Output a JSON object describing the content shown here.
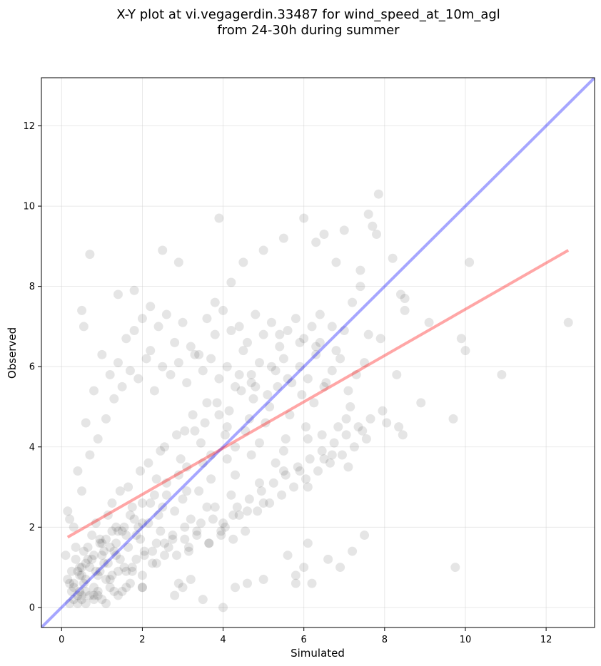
{
  "chart_data": {
    "type": "scatter",
    "title_line1": "X-Y plot at vi.vegagerdin.33487 for wind_speed_at_10m_agl",
    "title_line2": "from 24-30h during summer",
    "xlabel": "Simulated",
    "ylabel": "Observed",
    "xlim": [
      -0.5,
      13.2
    ],
    "ylim": [
      -0.5,
      13.2
    ],
    "xticks": [
      0,
      2,
      4,
      6,
      8,
      10,
      12
    ],
    "yticks": [
      0,
      2,
      4,
      6,
      8,
      10,
      12
    ],
    "grid": true,
    "marker_color": "#000000",
    "marker_alpha": 0.1,
    "identity_line": {
      "color": "#0000ff",
      "alpha": 0.35,
      "x": [
        -0.5,
        13.2
      ],
      "y": [
        -0.5,
        13.2
      ]
    },
    "fit_line": {
      "color": "#ff0000",
      "alpha": 0.35,
      "x": [
        0.15,
        12.55
      ],
      "y": [
        1.75,
        8.9
      ]
    },
    "points": {
      "x": [
        0.7,
        2.5,
        0.5,
        0.55,
        1.4,
        1.8,
        2.2,
        2.9,
        3.8,
        3.9,
        4.2,
        4.5,
        5.0,
        5.5,
        6.0,
        6.3,
        6.5,
        6.8,
        7.0,
        7.4,
        7.6,
        7.7,
        7.8,
        7.85,
        8.2,
        8.4,
        8.5,
        10.1,
        12.55,
        10.9,
        9.7,
        9.75,
        9.9,
        10.0,
        8.9,
        9.1,
        7.9,
        8.3,
        8.35,
        8.45,
        8.5,
        2.9,
        3.2,
        3.5,
        2.0,
        1.2,
        1.4,
        1.6,
        0.9,
        0.8,
        0.6,
        0.4,
        0.3,
        0.2,
        0.1,
        0.15,
        0.45,
        0.5,
        0.65,
        0.95,
        1.05,
        1.25,
        1.35,
        1.55,
        1.75,
        1.85,
        2.05,
        2.25,
        2.35,
        2.55,
        2.65,
        2.75,
        3.05,
        3.15,
        3.35,
        3.45,
        3.65,
        3.75,
        3.95,
        4.05,
        4.25,
        4.35,
        4.55,
        4.65,
        4.85,
        4.95,
        5.15,
        5.25,
        5.45,
        5.55,
        5.75,
        5.85,
        6.05,
        6.15,
        6.35,
        6.45,
        6.65,
        6.75,
        6.95,
        7.05,
        7.25,
        7.35,
        7.55,
        7.65,
        7.95,
        8.05,
        5.6,
        5.8,
        6.1,
        6.6,
        6.9,
        7.2,
        7.5,
        0.2,
        0.4,
        0.6,
        0.8,
        1.0,
        1.2,
        1.4,
        1.6,
        1.8,
        2.0,
        2.2,
        2.4,
        2.6,
        2.8,
        3.0,
        3.2,
        3.4,
        3.6,
        3.8,
        4.0,
        4.2,
        4.4,
        4.6,
        4.8,
        5.0,
        5.2,
        5.4,
        5.6,
        5.8,
        6.0,
        6.2,
        6.4,
        0.3,
        0.5,
        0.7,
        0.9,
        1.1,
        1.3,
        1.5,
        1.7,
        1.9,
        2.1,
        2.3,
        2.5,
        2.7,
        2.9,
        3.1,
        3.3,
        3.5,
        3.7,
        3.9,
        4.1,
        4.3,
        4.5,
        4.7,
        4.9,
        5.1,
        5.3,
        5.5,
        5.7,
        5.9,
        6.1,
        6.3,
        6.5,
        6.7,
        6.9,
        7.1,
        7.3,
        7.5,
        0.35,
        0.75,
        1.15,
        1.45,
        1.95,
        2.45,
        2.85,
        3.25,
        3.85,
        4.45,
        4.75,
        5.35,
        5.95,
        6.55,
        7.15,
        0.25,
        0.55,
        0.85,
        1.25,
        1.65,
        2.15,
        2.55,
        3.05,
        3.55,
        4.15,
        4.65,
        5.15,
        5.65,
        6.25,
        6.85,
        0.45,
        0.95,
        1.35,
        1.75,
        2.35,
        2.95,
        3.45,
        4.05,
        4.55,
        5.05,
        5.55,
        6.05,
        6.45,
        7.05,
        7.45,
        0.6,
        1.0,
        1.5,
        2.0,
        2.6,
        3.1,
        3.7,
        4.3,
        4.9,
        5.5,
        6.1,
        6.7,
        0.3,
        0.7,
        1.1,
        1.7,
        2.3,
        2.9,
        3.5,
        4.1,
        4.7,
        5.3,
        5.9,
        6.5,
        7.1,
        0.5,
        0.9,
        1.3,
        1.9,
        2.5,
        3.1,
        3.7,
        4.3,
        4.9,
        5.5,
        6.1,
        0.2,
        0.6,
        1.0,
        1.4,
        1.8,
        2.2,
        2.6,
        3.0,
        3.4,
        3.8,
        4.2,
        4.6,
        5.0,
        0.4,
        0.8,
        1.2,
        1.6,
        2.0,
        2.4,
        2.8,
        3.2,
        3.6,
        4.0,
        4.4,
        0.35,
        0.65,
        0.95,
        1.25,
        1.55,
        1.85,
        2.15,
        2.45,
        2.75,
        3.05,
        3.35,
        3.65,
        3.95,
        4.25,
        0.15,
        0.45,
        0.75,
        1.05,
        1.35,
        1.65,
        1.95,
        2.25,
        2.55,
        2.85,
        3.15,
        0.25,
        0.55,
        0.85,
        1.15,
        1.45,
        1.75,
        2.05,
        2.35,
        0.5,
        0.8,
        1.1,
        1.4,
        1.7,
        2.0,
        0.3,
        0.6,
        0.9,
        1.2,
        1.5,
        0.4,
        0.7,
        1.0,
        1.3,
        0.5,
        0.8,
        1.1,
        4.1,
        3.9,
        4.7,
        5.2,
        5.9,
        6.3,
        6.7,
        7.0,
        3.6,
        3.3,
        4.4,
        4.8,
        5.4,
        5.6,
        6.4,
        6.8,
        7.2,
        7.6,
        7.4,
        2.0,
        1.6,
        2.8,
        3.0,
        4.6,
        5.8,
        6.0,
        6.2,
        4.0,
        5.0,
        4.3
      ],
      "y": [
        8.8,
        8.9,
        7.4,
        7.0,
        7.8,
        7.9,
        7.5,
        8.6,
        7.6,
        9.7,
        8.1,
        8.6,
        8.9,
        9.2,
        9.7,
        9.1,
        9.3,
        8.6,
        9.4,
        8.4,
        9.8,
        9.5,
        9.3,
        10.3,
        8.7,
        7.8,
        7.4,
        8.6,
        7.1,
        5.8,
        4.7,
        1.0,
        6.7,
        6.4,
        5.1,
        7.1,
        6.7,
        5.8,
        4.5,
        4.3,
        7.7,
        0.6,
        0.7,
        0.2,
        0.5,
        0.7,
        0.3,
        0.5,
        0.4,
        0.2,
        0.1,
        0.3,
        0.6,
        0.1,
        1.3,
        2.4,
        0.8,
        1.0,
        1.2,
        0.9,
        1.1,
        0.8,
        1.3,
        1.0,
        0.9,
        1.2,
        1.4,
        1.1,
        1.6,
        1.3,
        1.5,
        1.8,
        1.7,
        1.4,
        1.9,
        2.1,
        1.6,
        2.2,
        1.8,
        2.0,
        2.3,
        2.5,
        1.9,
        2.7,
        2.4,
        2.9,
        2.6,
        3.1,
        2.8,
        3.3,
        3.0,
        3.5,
        3.2,
        3.7,
        3.4,
        3.9,
        3.6,
        4.1,
        3.8,
        4.3,
        4.0,
        4.5,
        4.2,
        4.7,
        4.9,
        4.6,
        1.3,
        0.6,
        1.6,
        1.2,
        1.0,
        1.4,
        1.8,
        2.2,
        3.4,
        4.6,
        5.4,
        6.3,
        5.8,
        6.1,
        6.7,
        6.9,
        7.2,
        6.4,
        7.0,
        7.3,
        6.6,
        7.1,
        6.5,
        6.3,
        7.2,
        6.8,
        7.4,
        6.9,
        7.0,
        6.6,
        7.3,
        6.8,
        7.1,
        6.5,
        6.9,
        7.2,
        6.7,
        7.0,
        6.6,
        2.0,
        2.9,
        3.8,
        4.2,
        4.7,
        5.2,
        5.5,
        5.9,
        5.7,
        6.2,
        5.4,
        6.0,
        5.8,
        6.1,
        5.6,
        6.3,
        5.9,
        6.2,
        5.7,
        6.0,
        5.5,
        6.4,
        5.8,
        6.1,
        5.3,
        5.9,
        6.2,
        5.6,
        6.0,
        5.7,
        6.3,
        5.5,
        5.9,
        6.2,
        5.4,
        5.8,
        6.1,
        1.5,
        1.8,
        2.3,
        2.9,
        3.4,
        3.9,
        4.3,
        4.8,
        5.1,
        5.4,
        5.2,
        5.5,
        5.3,
        5.6,
        5.0,
        0.9,
        1.4,
        2.1,
        2.6,
        3.0,
        3.6,
        4.0,
        4.4,
        4.6,
        4.9,
        4.7,
        5.0,
        4.8,
        5.1,
        4.5,
        0.4,
        1.6,
        2.0,
        2.5,
        3.2,
        3.7,
        4.1,
        4.3,
        4.4,
        4.6,
        4.2,
        4.5,
        4.3,
        4.7,
        4.4,
        0.7,
        1.3,
        1.9,
        2.6,
        3.1,
        3.5,
        3.8,
        4.0,
        4.1,
        3.9,
        4.2,
        3.8,
        0.5,
        1.0,
        1.7,
        2.3,
        2.8,
        3.3,
        3.6,
        3.7,
        3.8,
        3.6,
        3.4,
        3.7,
        3.5,
        0.3,
        0.8,
        1.4,
        2.0,
        2.5,
        2.9,
        3.2,
        3.3,
        3.1,
        3.4,
        3.0,
        0.6,
        1.1,
        1.6,
        1.9,
        2.2,
        2.6,
        2.8,
        2.7,
        2.9,
        2.5,
        2.8,
        2.4,
        2.6,
        0.9,
        1.3,
        1.5,
        1.8,
        2.1,
        2.3,
        2.4,
        2.2,
        2.5,
        2.1,
        2.3,
        1.2,
        1.5,
        1.7,
        1.9,
        2.0,
        1.8,
        2.1,
        1.9,
        1.7,
        2.0,
        1.8,
        1.6,
        1.9,
        1.7,
        0.7,
        1.0,
        1.2,
        1.4,
        1.6,
        1.5,
        1.7,
        1.4,
        1.6,
        1.3,
        1.5,
        0.4,
        0.6,
        0.9,
        1.1,
        1.2,
        1.0,
        1.3,
        1.1,
        0.8,
        0.5,
        0.7,
        0.9,
        0.6,
        0.8,
        0.2,
        0.4,
        0.3,
        0.5,
        0.4,
        0.1,
        0.3,
        0.2,
        0.4,
        0.2,
        0.3,
        0.1,
        4.5,
        4.8,
        5.6,
        6.0,
        6.6,
        6.5,
        7.0,
        6.9,
        5.1,
        4.4,
        5.8,
        5.5,
        6.8,
        5.7,
        7.3,
        6.4,
        7.6,
        6.8,
        8.0,
        0.5,
        0.9,
        0.3,
        0.5,
        0.6,
        0.8,
        1.0,
        0.6,
        0.0,
        0.7,
        0.5
      ]
    }
  }
}
